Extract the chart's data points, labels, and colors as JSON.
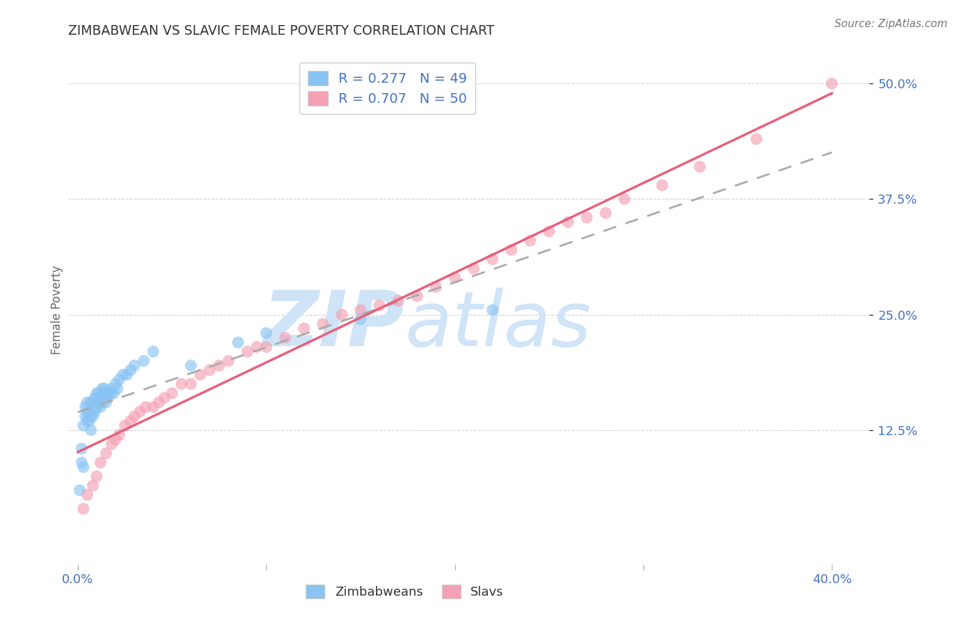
{
  "title": "ZIMBABWEAN VS SLAVIC FEMALE POVERTY CORRELATION CHART",
  "source": "Source: ZipAtlas.com",
  "ylabel_label": "Female Poverty",
  "xlim": [
    -0.005,
    0.42
  ],
  "ylim": [
    -0.02,
    0.53
  ],
  "xticks": [
    0.0,
    0.1,
    0.2,
    0.3,
    0.4
  ],
  "xtick_labels": [
    "0.0%",
    "",
    "",
    "",
    "40.0%"
  ],
  "ytick_labels": [
    "12.5%",
    "25.0%",
    "37.5%",
    "50.0%"
  ],
  "yticks": [
    0.125,
    0.25,
    0.375,
    0.5
  ],
  "zimbabwean_R": 0.277,
  "zimbabwean_N": 49,
  "slavic_R": 0.707,
  "slavic_N": 50,
  "zim_color": "#89C4F4",
  "slav_color": "#F4A0B5",
  "zim_line_color": "#5A9AD5",
  "slav_line_color": "#E8607A",
  "background_color": "#FFFFFF",
  "grid_color": "#CCCCCC",
  "title_color": "#333333",
  "axis_label_color": "#666666",
  "tick_color": "#4472C4",
  "watermark_zip": "ZIP",
  "watermark_atlas": "atlas",
  "watermark_color": "#D0E4F7",
  "legend_box_color": "#CCCCCC",
  "zimbabwean_x": [
    0.001,
    0.002,
    0.002,
    0.003,
    0.003,
    0.004,
    0.004,
    0.005,
    0.005,
    0.005,
    0.006,
    0.006,
    0.007,
    0.007,
    0.007,
    0.008,
    0.008,
    0.009,
    0.009,
    0.01,
    0.01,
    0.011,
    0.011,
    0.012,
    0.012,
    0.013,
    0.013,
    0.014,
    0.014,
    0.015,
    0.015,
    0.016,
    0.017,
    0.018,
    0.019,
    0.02,
    0.021,
    0.022,
    0.024,
    0.026,
    0.028,
    0.03,
    0.035,
    0.04,
    0.06,
    0.085,
    0.1,
    0.15,
    0.22
  ],
  "zimbabwean_y": [
    0.06,
    0.105,
    0.09,
    0.13,
    0.085,
    0.14,
    0.15,
    0.135,
    0.145,
    0.155,
    0.135,
    0.145,
    0.125,
    0.14,
    0.155,
    0.14,
    0.155,
    0.145,
    0.16,
    0.15,
    0.165,
    0.155,
    0.165,
    0.15,
    0.16,
    0.155,
    0.17,
    0.16,
    0.17,
    0.155,
    0.165,
    0.16,
    0.165,
    0.17,
    0.165,
    0.175,
    0.17,
    0.18,
    0.185,
    0.185,
    0.19,
    0.195,
    0.2,
    0.21,
    0.195,
    0.22,
    0.23,
    0.245,
    0.255
  ],
  "slavic_x": [
    0.003,
    0.005,
    0.008,
    0.01,
    0.012,
    0.015,
    0.018,
    0.02,
    0.022,
    0.025,
    0.028,
    0.03,
    0.033,
    0.036,
    0.04,
    0.043,
    0.046,
    0.05,
    0.055,
    0.06,
    0.065,
    0.07,
    0.075,
    0.08,
    0.09,
    0.095,
    0.1,
    0.11,
    0.12,
    0.13,
    0.14,
    0.15,
    0.16,
    0.17,
    0.18,
    0.19,
    0.2,
    0.21,
    0.22,
    0.23,
    0.24,
    0.25,
    0.26,
    0.27,
    0.28,
    0.29,
    0.31,
    0.33,
    0.36,
    0.4
  ],
  "slavic_y": [
    0.04,
    0.055,
    0.065,
    0.075,
    0.09,
    0.1,
    0.11,
    0.115,
    0.12,
    0.13,
    0.135,
    0.14,
    0.145,
    0.15,
    0.15,
    0.155,
    0.16,
    0.165,
    0.175,
    0.175,
    0.185,
    0.19,
    0.195,
    0.2,
    0.21,
    0.215,
    0.215,
    0.225,
    0.235,
    0.24,
    0.25,
    0.255,
    0.26,
    0.265,
    0.27,
    0.28,
    0.29,
    0.3,
    0.31,
    0.32,
    0.33,
    0.34,
    0.35,
    0.355,
    0.36,
    0.375,
    0.39,
    0.41,
    0.44,
    0.5
  ]
}
